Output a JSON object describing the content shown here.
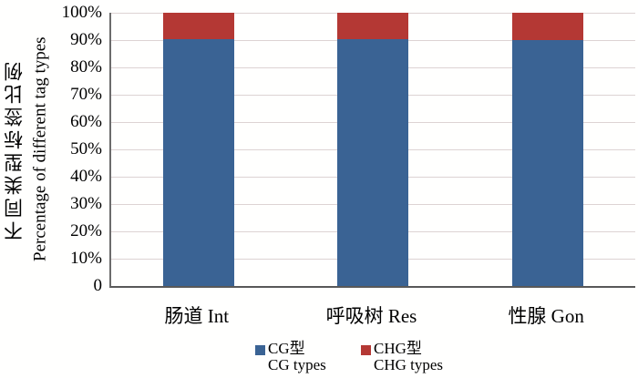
{
  "chart_data": {
    "type": "bar",
    "subtype": "stacked-100-percent",
    "title": "",
    "categories": [
      "肠道 Int",
      "呼吸树 Res",
      "性腺 Gon"
    ],
    "series": [
      {
        "name": "CG型 CG types",
        "label_zh": "CG型",
        "label_en": "CG types",
        "color": "#3a6394",
        "values": [
          90.5,
          90.2,
          89.9
        ]
      },
      {
        "name": "CHG型 CHG types",
        "label_zh": "CHG型",
        "label_en": "CHG types",
        "color": "#b43834",
        "values": [
          9.5,
          9.8,
          10.1
        ]
      }
    ],
    "ylabel_zh": "不同类型标签比例",
    "ylabel_en": "Percentage of different tag types",
    "y_ticks": [
      "100%",
      "90%",
      "80%",
      "70%",
      "60%",
      "50%",
      "40%",
      "30%",
      "20%",
      "10%",
      "0"
    ],
    "ylim": [
      0,
      100
    ],
    "grid": true,
    "legend_position": "bottom"
  }
}
